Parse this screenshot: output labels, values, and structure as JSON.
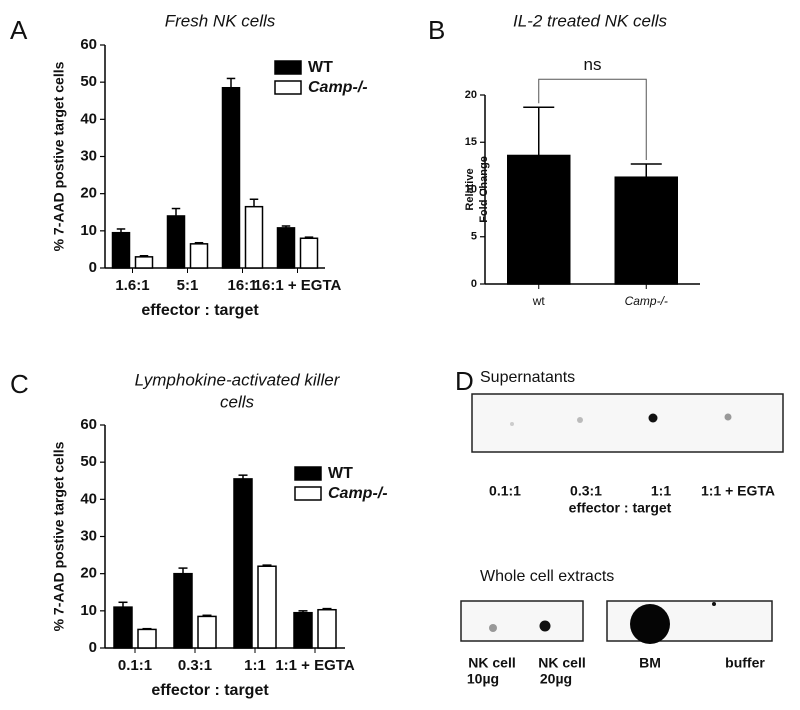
{
  "chart_data": [
    {
      "type": "bar",
      "panel": "A",
      "title": "Fresh NK cells",
      "xlabel": "effector : target",
      "ylabel": "% 7-AAD postive target cells",
      "categories": [
        "1.6:1",
        "5:1",
        "16:1",
        "16:1 + EGTA"
      ],
      "series": [
        {
          "name": "WT",
          "color": "#000000",
          "values": [
            9.5,
            14,
            48.5,
            10.8
          ],
          "errors": [
            1,
            2,
            2.5,
            0.5
          ]
        },
        {
          "name": "Camp-/-",
          "color": "#ffffff",
          "values": [
            3,
            6.5,
            16.5,
            8
          ],
          "errors": [
            0.3,
            0.3,
            2,
            0.3
          ]
        }
      ],
      "ylim": [
        0,
        60
      ],
      "yticks": [
        0,
        10,
        20,
        30,
        40,
        50,
        60
      ],
      "legend": "upper-right"
    },
    {
      "type": "bar",
      "panel": "B",
      "title": "IL-2 treated NK cells",
      "ylabel": [
        "Relative",
        "Fold Change"
      ],
      "categories": [
        "wt",
        "Camp-/-"
      ],
      "values": [
        13.6,
        11.3
      ],
      "errors": [
        5.1,
        1.4
      ],
      "color": "#000000",
      "ylim": [
        0,
        20
      ],
      "yticks": [
        0,
        5,
        10,
        15,
        20
      ],
      "annotation": "ns"
    },
    {
      "type": "bar",
      "panel": "C",
      "title": [
        "Lymphokine-activated killer",
        "cells"
      ],
      "xlabel": "effector : target",
      "ylabel": "% 7-AAD postive target cells",
      "categories": [
        "0.1:1",
        "0.3:1",
        "1:1",
        "1:1 + EGTA"
      ],
      "series": [
        {
          "name": "WT",
          "color": "#000000",
          "values": [
            11,
            20,
            45.5,
            9.5
          ],
          "errors": [
            1.3,
            1.5,
            1,
            0.5
          ]
        },
        {
          "name": "Camp-/-",
          "color": "#ffffff",
          "values": [
            5,
            8.5,
            22,
            10.3
          ],
          "errors": [
            0.2,
            0.3,
            0.3,
            0.3
          ]
        }
      ],
      "ylim": [
        0,
        60
      ],
      "yticks": [
        0,
        10,
        20,
        30,
        40,
        50,
        60
      ],
      "legend": "upper-right"
    }
  ],
  "blot": {
    "panel": "D",
    "top_title": "Supernatants",
    "top_labels": [
      "0.1:1",
      "0.3:1",
      "1:1",
      "1:1 + EGTA"
    ],
    "top_xlabel": "effector : target",
    "bottom_title": "Whole cell extracts",
    "bottom_labels": [
      [
        "NK cell",
        "10µg"
      ],
      [
        "NK cell",
        "20µg"
      ],
      [
        "BM"
      ],
      [
        "buffer"
      ]
    ]
  }
}
